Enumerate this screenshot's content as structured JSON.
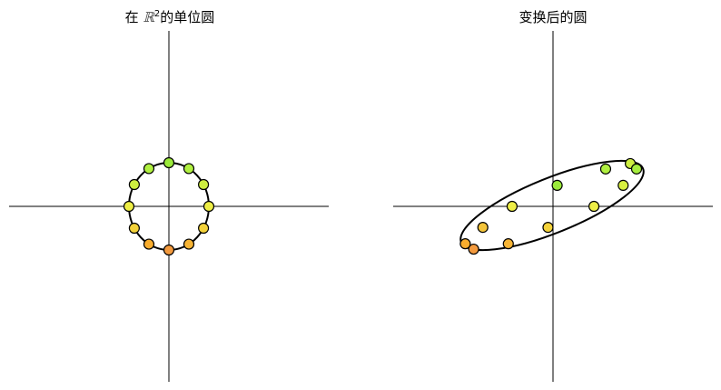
{
  "panels": [
    {
      "title_prefix": "在 ",
      "title_symbol": "ℝ",
      "title_exponent": "2",
      "title_suffix": "的单位圆",
      "curve": "unit-circle",
      "points": [
        {
          "x": 0.0,
          "y": 1.0,
          "color": "#9BEA3A"
        },
        {
          "x": 0.5,
          "y": 0.866,
          "color": "#B0F040"
        },
        {
          "x": 0.866,
          "y": 0.5,
          "color": "#CDEE40"
        },
        {
          "x": 1.0,
          "y": 0.0,
          "color": "#EEEE46"
        },
        {
          "x": 0.866,
          "y": -0.5,
          "color": "#F3D23A"
        },
        {
          "x": 0.5,
          "y": -0.866,
          "color": "#F7B434"
        },
        {
          "x": 0.0,
          "y": -1.0,
          "color": "#F39A3E"
        },
        {
          "x": -0.5,
          "y": -0.866,
          "color": "#F9AD2E"
        },
        {
          "x": -0.866,
          "y": -0.5,
          "color": "#F3D23A"
        },
        {
          "x": -1.0,
          "y": 0.0,
          "color": "#EEEE46"
        },
        {
          "x": -0.866,
          "y": 0.5,
          "color": "#CDEE40"
        },
        {
          "x": -0.5,
          "y": 0.866,
          "color": "#B0F040"
        }
      ]
    },
    {
      "title": "变换后的圆",
      "curve": "transformed-ellipse",
      "points": [
        {
          "x": 0.1,
          "y": 0.55,
          "color": "#9BEA3A"
        },
        {
          "x": 1.26,
          "y": 0.98,
          "color": "#B0F040"
        },
        {
          "x": 1.85,
          "y": 1.12,
          "color": "#CDEE40"
        },
        {
          "x": 2.0,
          "y": 0.98,
          "color": "#A6EE3E"
        },
        {
          "x": 1.68,
          "y": 0.55,
          "color": "#D8F040"
        },
        {
          "x": 0.98,
          "y": 0.0,
          "color": "#EEEE46"
        },
        {
          "x": -0.12,
          "y": -0.55,
          "color": "#F3D23A"
        },
        {
          "x": -1.07,
          "y": -0.98,
          "color": "#F7B434"
        },
        {
          "x": -1.9,
          "y": -1.12,
          "color": "#F39A3E"
        },
        {
          "x": -2.1,
          "y": -0.98,
          "color": "#F9AD2E"
        },
        {
          "x": -1.68,
          "y": -0.55,
          "color": "#F3C43A"
        },
        {
          "x": -0.98,
          "y": 0.0,
          "color": "#EEEE46"
        }
      ]
    }
  ]
}
